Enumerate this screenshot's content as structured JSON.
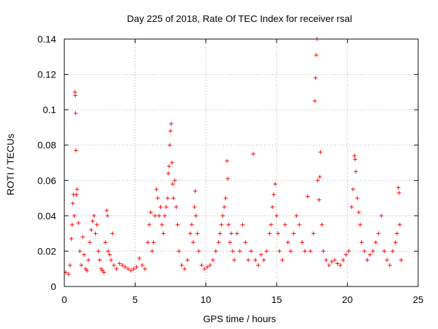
{
  "chart_data": {
    "type": "scatter",
    "title": "Day 225 of 2018, Rate Of TEC Index for receiver rsal",
    "xlabel": "GPS time / hours",
    "ylabel": "ROTI / TECUs",
    "xlim": [
      0,
      25
    ],
    "ylim": [
      0,
      0.14
    ],
    "xticks": [
      0,
      5,
      10,
      15,
      20,
      25
    ],
    "xtick_labels": [
      "0",
      "5",
      "10",
      "15",
      "20",
      "25"
    ],
    "yticks": [
      0,
      0.02,
      0.04,
      0.06,
      0.08,
      0.1,
      0.12,
      0.14
    ],
    "ytick_labels": [
      "0",
      "0.02",
      "0.04",
      "0.06",
      "0.08",
      "0.1",
      "0.12",
      "0.14"
    ],
    "grid": true,
    "marker": "plus",
    "color": "#ff0000",
    "series": [
      {
        "name": "ROTI",
        "points": [
          [
            0.1,
            0.008
          ],
          [
            0.3,
            0.007
          ],
          [
            0.4,
            0.012
          ],
          [
            0.5,
            0.027
          ],
          [
            0.55,
            0.035
          ],
          [
            0.6,
            0.047
          ],
          [
            0.65,
            0.052
          ],
          [
            0.7,
            0.04
          ],
          [
            0.75,
            0.11
          ],
          [
            0.78,
            0.108
          ],
          [
            0.8,
            0.098
          ],
          [
            0.82,
            0.077
          ],
          [
            0.85,
            0.052
          ],
          [
            0.9,
            0.055
          ],
          [
            1.0,
            0.036
          ],
          [
            1.1,
            0.02
          ],
          [
            1.2,
            0.012
          ],
          [
            1.3,
            0.028
          ],
          [
            1.4,
            0.018
          ],
          [
            1.5,
            0.01
          ],
          [
            1.6,
            0.009
          ],
          [
            1.7,
            0.015
          ],
          [
            1.8,
            0.025
          ],
          [
            1.9,
            0.032
          ],
          [
            2.0,
            0.037
          ],
          [
            2.1,
            0.04
          ],
          [
            2.2,
            0.03
          ],
          [
            2.3,
            0.035
          ],
          [
            2.4,
            0.02
          ],
          [
            2.5,
            0.015
          ],
          [
            2.6,
            0.01
          ],
          [
            2.7,
            0.009
          ],
          [
            2.8,
            0.008
          ],
          [
            2.9,
            0.025
          ],
          [
            3.0,
            0.043
          ],
          [
            3.05,
            0.04
          ],
          [
            3.1,
            0.02
          ],
          [
            3.2,
            0.018
          ],
          [
            3.3,
            0.015
          ],
          [
            3.4,
            0.03
          ],
          [
            3.5,
            0.012
          ],
          [
            3.7,
            0.01
          ],
          [
            3.9,
            0.013
          ],
          [
            4.1,
            0.012
          ],
          [
            4.3,
            0.011
          ],
          [
            4.5,
            0.01
          ],
          [
            4.7,
            0.009
          ],
          [
            4.9,
            0.01
          ],
          [
            5.1,
            0.011
          ],
          [
            5.3,
            0.016
          ],
          [
            5.5,
            0.012
          ],
          [
            5.7,
            0.01
          ],
          [
            5.9,
            0.025
          ],
          [
            6.0,
            0.035
          ],
          [
            6.1,
            0.042
          ],
          [
            6.2,
            0.02
          ],
          [
            6.3,
            0.025
          ],
          [
            6.4,
            0.04
          ],
          [
            6.5,
            0.055
          ],
          [
            6.6,
            0.05
          ],
          [
            6.7,
            0.04
          ],
          [
            6.8,
            0.045
          ],
          [
            6.9,
            0.035
          ],
          [
            7.0,
            0.03
          ],
          [
            7.1,
            0.04
          ],
          [
            7.2,
            0.045
          ],
          [
            7.3,
            0.05
          ],
          [
            7.35,
            0.064
          ],
          [
            7.4,
            0.068
          ],
          [
            7.45,
            0.08
          ],
          [
            7.5,
            0.088
          ],
          [
            7.55,
            0.092
          ],
          [
            7.6,
            0.07
          ],
          [
            7.65,
            0.058
          ],
          [
            7.7,
            0.05
          ],
          [
            7.8,
            0.06
          ],
          [
            7.9,
            0.045
          ],
          [
            8.0,
            0.035
          ],
          [
            8.1,
            0.02
          ],
          [
            8.3,
            0.012
          ],
          [
            8.5,
            0.01
          ],
          [
            8.7,
            0.015
          ],
          [
            8.9,
            0.03
          ],
          [
            9.0,
            0.035
          ],
          [
            9.1,
            0.025
          ],
          [
            9.2,
            0.045
          ],
          [
            9.25,
            0.054
          ],
          [
            9.3,
            0.04
          ],
          [
            9.4,
            0.03
          ],
          [
            9.5,
            0.02
          ],
          [
            9.7,
            0.012
          ],
          [
            9.9,
            0.01
          ],
          [
            10.1,
            0.011
          ],
          [
            10.3,
            0.012
          ],
          [
            10.5,
            0.015
          ],
          [
            10.7,
            0.02
          ],
          [
            10.9,
            0.025
          ],
          [
            11.0,
            0.03
          ],
          [
            11.1,
            0.035
          ],
          [
            11.2,
            0.04
          ],
          [
            11.3,
            0.045
          ],
          [
            11.4,
            0.05
          ],
          [
            11.5,
            0.071
          ],
          [
            11.55,
            0.061
          ],
          [
            11.6,
            0.035
          ],
          [
            11.7,
            0.025
          ],
          [
            11.8,
            0.03
          ],
          [
            11.9,
            0.02
          ],
          [
            12.0,
            0.015
          ],
          [
            12.2,
            0.03
          ],
          [
            12.4,
            0.02
          ],
          [
            12.6,
            0.035
          ],
          [
            12.8,
            0.025
          ],
          [
            13.0,
            0.015
          ],
          [
            13.2,
            0.02
          ],
          [
            13.35,
            0.075
          ],
          [
            13.5,
            0.015
          ],
          [
            13.7,
            0.012
          ],
          [
            13.9,
            0.018
          ],
          [
            14.1,
            0.015
          ],
          [
            14.3,
            0.02
          ],
          [
            14.5,
            0.03
          ],
          [
            14.6,
            0.035
          ],
          [
            14.7,
            0.045
          ],
          [
            14.8,
            0.052
          ],
          [
            14.9,
            0.058
          ],
          [
            15.0,
            0.04
          ],
          [
            15.1,
            0.03
          ],
          [
            15.2,
            0.02
          ],
          [
            15.4,
            0.015
          ],
          [
            15.6,
            0.035
          ],
          [
            15.8,
            0.025
          ],
          [
            16.0,
            0.02
          ],
          [
            16.2,
            0.03
          ],
          [
            16.4,
            0.04
          ],
          [
            16.6,
            0.035
          ],
          [
            16.8,
            0.025
          ],
          [
            17.0,
            0.02
          ],
          [
            17.2,
            0.051
          ],
          [
            17.4,
            0.02
          ],
          [
            17.6,
            0.03
          ],
          [
            17.7,
            0.105
          ],
          [
            17.75,
            0.118
          ],
          [
            17.8,
            0.131
          ],
          [
            17.85,
            0.14
          ],
          [
            17.9,
            0.06
          ],
          [
            18.0,
            0.049
          ],
          [
            18.05,
            0.062
          ],
          [
            18.1,
            0.076
          ],
          [
            18.2,
            0.035
          ],
          [
            18.3,
            0.02
          ],
          [
            18.5,
            0.015
          ],
          [
            18.7,
            0.012
          ],
          [
            18.9,
            0.014
          ],
          [
            19.1,
            0.015
          ],
          [
            19.3,
            0.013
          ],
          [
            19.5,
            0.012
          ],
          [
            19.7,
            0.015
          ],
          [
            19.9,
            0.018
          ],
          [
            20.1,
            0.02
          ],
          [
            20.3,
            0.045
          ],
          [
            20.4,
            0.055
          ],
          [
            20.5,
            0.074
          ],
          [
            20.55,
            0.072
          ],
          [
            20.6,
            0.065
          ],
          [
            20.7,
            0.05
          ],
          [
            20.8,
            0.042
          ],
          [
            20.9,
            0.035
          ],
          [
            21.0,
            0.025
          ],
          [
            21.2,
            0.02
          ],
          [
            21.4,
            0.015
          ],
          [
            21.6,
            0.018
          ],
          [
            21.8,
            0.02
          ],
          [
            22.0,
            0.025
          ],
          [
            22.2,
            0.03
          ],
          [
            22.4,
            0.04
          ],
          [
            22.6,
            0.02
          ],
          [
            22.8,
            0.015
          ],
          [
            23.0,
            0.012
          ],
          [
            23.2,
            0.02
          ],
          [
            23.4,
            0.025
          ],
          [
            23.5,
            0.03
          ],
          [
            23.6,
            0.056
          ],
          [
            23.65,
            0.053
          ],
          [
            23.7,
            0.035
          ],
          [
            23.8,
            0.015
          ]
        ]
      }
    ]
  }
}
